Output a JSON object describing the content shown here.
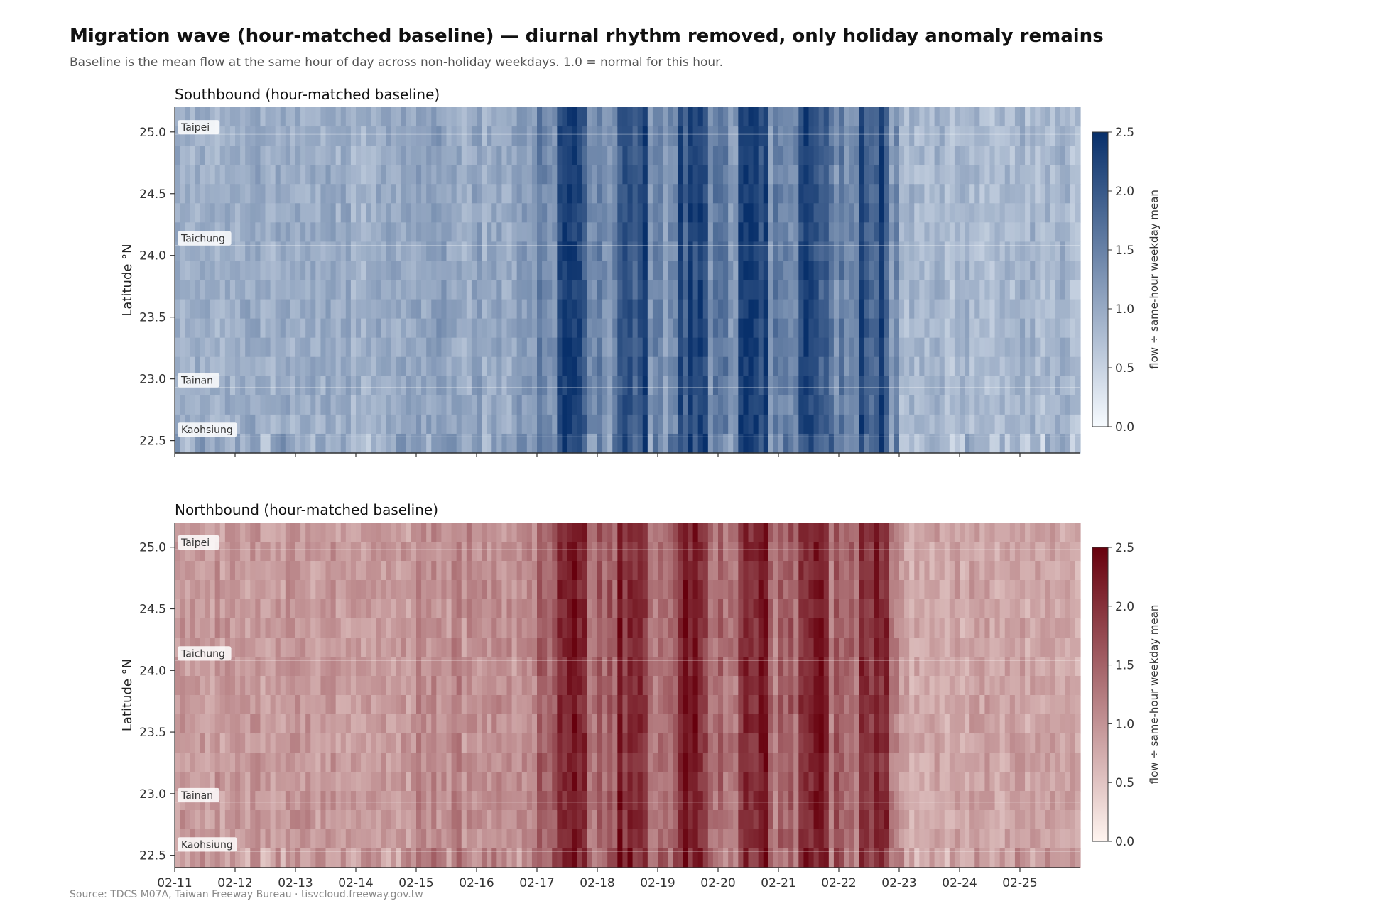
{
  "title": "Migration wave (hour-matched baseline) — diurnal rhythm removed, only holiday anomaly remains",
  "subtitle": "Baseline is the mean flow at the same hour of day across non-holiday weekdays. 1.0 = normal for this hour.",
  "source": "Source: TDCS M07A, Taiwan Freeway Bureau  ·  tisvcloud.freeway.gov.tw",
  "chart_data": [
    {
      "type": "heatmap",
      "title": "Southbound (hour-matched baseline)",
      "ylabel": "Latitude °N",
      "ylim": [
        22.4,
        25.2
      ],
      "yticks": [
        "22.5",
        "23.0",
        "23.5",
        "24.0",
        "24.5",
        "25.0"
      ],
      "x_dates": [
        "02-11",
        "02-12",
        "02-13",
        "02-14",
        "02-15",
        "02-16",
        "02-17",
        "02-18",
        "02-19",
        "02-20",
        "02-21",
        "02-22",
        "02-23",
        "02-24",
        "02-25"
      ],
      "colormap": "Blues",
      "cmap_low": "#f7fbff",
      "cmap_high": "#08306b",
      "colorbar_label": "flow ÷ same-hour weekday mean",
      "colorbar_range": [
        0.0,
        2.5
      ],
      "colorbar_ticks": [
        "0.0",
        "0.5",
        "1.0",
        "1.5",
        "2.0",
        "2.5"
      ],
      "cities": [
        {
          "name": "Taipei",
          "lat": 25.05
        },
        {
          "name": "Taichung",
          "lat": 24.15
        },
        {
          "name": "Tainan",
          "lat": 23.0
        },
        {
          "name": "Kaohsiung",
          "lat": 22.6
        }
      ],
      "peak_days": [
        "02-17",
        "02-18",
        "02-19",
        "02-20",
        "02-21",
        "02-22"
      ],
      "baseline": 1.0
    },
    {
      "type": "heatmap",
      "title": "Northbound (hour-matched baseline)",
      "ylabel": "Latitude °N",
      "ylim": [
        22.4,
        25.2
      ],
      "yticks": [
        "22.5",
        "23.0",
        "23.5",
        "24.0",
        "24.5",
        "25.0"
      ],
      "x_dates": [
        "02-11",
        "02-12",
        "02-13",
        "02-14",
        "02-15",
        "02-16",
        "02-17",
        "02-18",
        "02-19",
        "02-20",
        "02-21",
        "02-22",
        "02-23",
        "02-24",
        "02-25"
      ],
      "colormap": "Reds",
      "cmap_low": "#fff5f0",
      "cmap_high": "#67000d",
      "colorbar_label": "flow ÷ same-hour weekday mean",
      "colorbar_range": [
        0.0,
        2.5
      ],
      "colorbar_ticks": [
        "0.0",
        "0.5",
        "1.0",
        "1.5",
        "2.0",
        "2.5"
      ],
      "cities": [
        {
          "name": "Taipei",
          "lat": 25.05
        },
        {
          "name": "Taichung",
          "lat": 24.15
        },
        {
          "name": "Tainan",
          "lat": 23.0
        },
        {
          "name": "Kaohsiung",
          "lat": 22.6
        }
      ],
      "peak_days": [
        "02-17",
        "02-18",
        "02-19",
        "02-20",
        "02-21",
        "02-22"
      ],
      "baseline": 1.0
    }
  ]
}
